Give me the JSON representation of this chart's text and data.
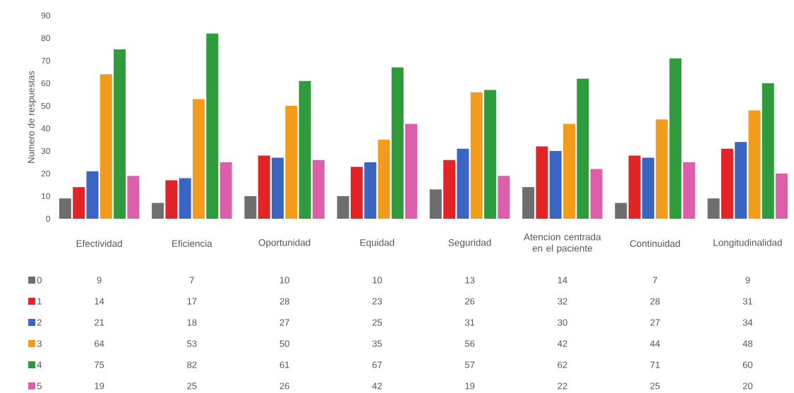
{
  "chart_data": {
    "type": "bar",
    "ylabel": "Numero de respuestas",
    "categories": [
      "Efectividad",
      "Eficiencia",
      "Oportunidad",
      "Equidad",
      "Seguridad",
      "Atencion centrada en el paciente",
      "Continuidad",
      "Longitudinalidad"
    ],
    "series": [
      {
        "name": "0",
        "color": "#6e6e6e",
        "values": [
          9,
          7,
          10,
          10,
          13,
          14,
          7,
          9
        ]
      },
      {
        "name": "1",
        "color": "#e32426",
        "values": [
          14,
          17,
          28,
          23,
          26,
          32,
          28,
          31
        ]
      },
      {
        "name": "2",
        "color": "#3b65c3",
        "values": [
          21,
          18,
          27,
          25,
          31,
          30,
          27,
          34
        ]
      },
      {
        "name": "3",
        "color": "#f39c1b",
        "values": [
          64,
          53,
          50,
          35,
          56,
          42,
          44,
          48
        ]
      },
      {
        "name": "4",
        "color": "#2f9b3d",
        "values": [
          75,
          82,
          61,
          67,
          57,
          62,
          71,
          60
        ]
      },
      {
        "name": "5",
        "color": "#dd5fab",
        "values": [
          19,
          25,
          26,
          42,
          19,
          22,
          25,
          20
        ]
      }
    ],
    "ylim": [
      0,
      90
    ],
    "yticks": [
      0,
      10,
      20,
      30,
      40,
      50,
      60,
      70,
      80,
      90
    ],
    "legend": "bottom",
    "data_labels": true
  }
}
